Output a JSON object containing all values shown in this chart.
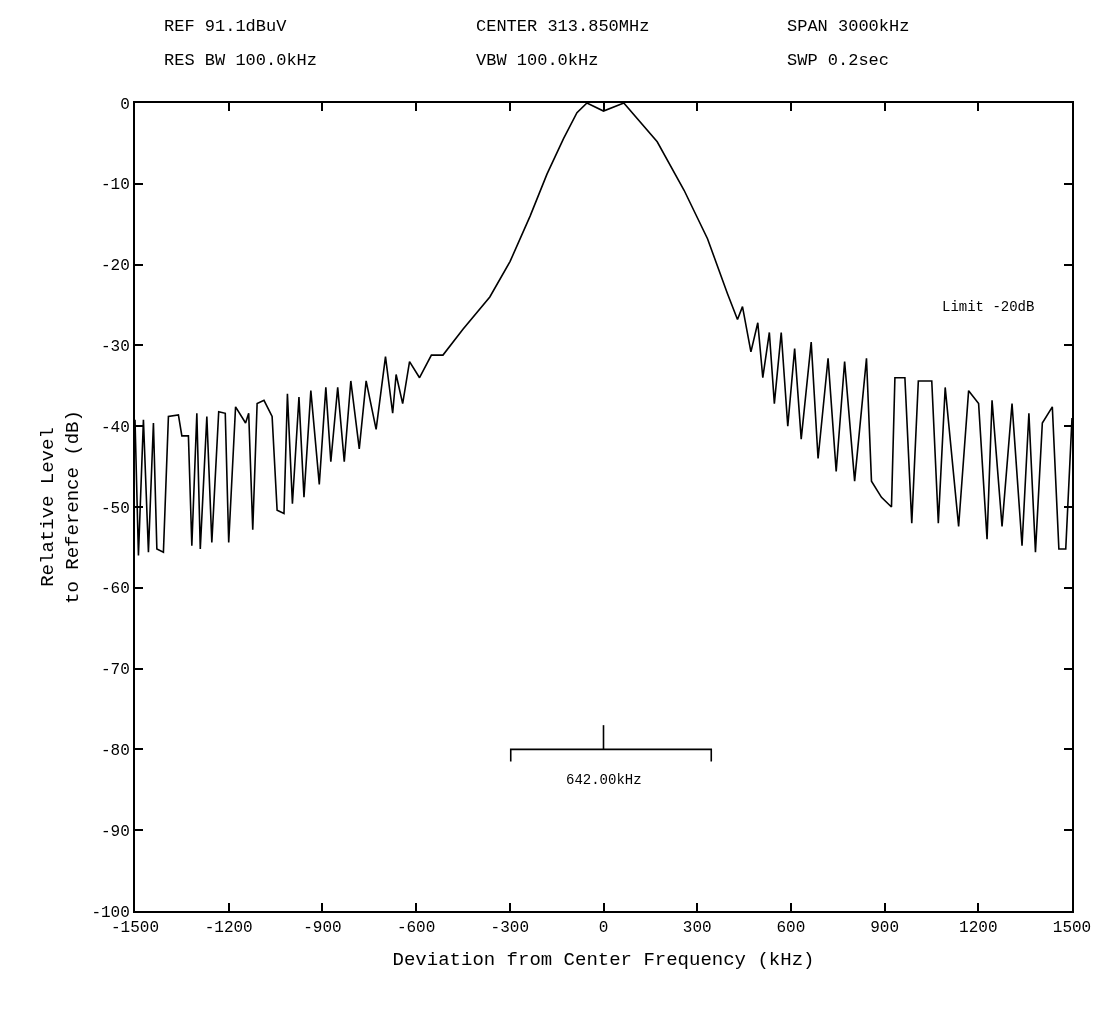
{
  "chart_data": {
    "type": "line",
    "xlabel": "Deviation from Center Frequency (kHz)",
    "ylabel": "Relative Level\nto Reference (dB)",
    "annotations": [
      "REF 91.1dBuV",
      "CENTER 313.850MHz",
      "SPAN 3000kHz",
      "RES BW 100.0kHz",
      "VBW 100.0kHz",
      "SWP 0.2sec",
      "Limit -20dB",
      "642.00kHz"
    ],
    "x": [
      -1500,
      -1489,
      -1473,
      -1457,
      -1441,
      -1430,
      -1409,
      -1393,
      -1361,
      -1350,
      -1329,
      -1318,
      -1302,
      -1291,
      -1270,
      -1254,
      -1232,
      -1211,
      -1200,
      -1178,
      -1146,
      -1136,
      -1123,
      -1109,
      -1087,
      -1061,
      -1045,
      -1023,
      -1012,
      -996,
      -975,
      -959,
      -937,
      -910,
      -889,
      -873,
      -851,
      -830,
      -809,
      -782,
      -760,
      -728,
      -698,
      -675,
      -664,
      -643,
      -621,
      -589,
      -551,
      -514,
      -450,
      -364,
      -299,
      -235,
      -181,
      -128,
      -85,
      -53,
      0,
      65,
      172,
      258,
      333,
      397,
      429,
      445,
      472,
      494,
      510,
      531,
      547,
      569,
      590,
      612,
      633,
      665,
      687,
      719,
      745,
      772,
      804,
      842,
      858,
      890,
      922,
      933,
      965,
      987,
      1008,
      1051,
      1072,
      1094,
      1137,
      1169,
      1201,
      1228,
      1244,
      1276,
      1308,
      1340,
      1362,
      1383,
      1405,
      1437,
      1458,
      1480,
      1500
    ],
    "series": [
      {
        "color": "#000000",
        "values": [
          -39.2,
          -56,
          -39.2,
          -55.6,
          -39.6,
          -55.2,
          -55.6,
          -38.8,
          -38.6,
          -41.2,
          -41.2,
          -54.8,
          -38.4,
          -55.2,
          -38.8,
          -54.4,
          -38.2,
          -38.4,
          -54.4,
          -37.6,
          -39.6,
          -38.4,
          -52.8,
          -37.2,
          -36.8,
          -38.8,
          -50.4,
          -50.8,
          -36,
          -49.6,
          -36.4,
          -48.8,
          -35.6,
          -47.2,
          -35.2,
          -44.4,
          -35.2,
          -44.4,
          -34.4,
          -42.8,
          -34.4,
          -40.4,
          -31.4,
          -38.4,
          -33.6,
          -37.2,
          -32,
          -34,
          -31.2,
          -31.2,
          -28,
          -24,
          -19.6,
          -14,
          -8.8,
          -4.4,
          -1.2,
          0,
          -1,
          0,
          -4.8,
          -10.8,
          -16.8,
          -23.6,
          -26.8,
          -25.2,
          -30.8,
          -27.2,
          -34,
          -28.4,
          -37.2,
          -28.4,
          -40,
          -30.4,
          -41.6,
          -29.6,
          -44,
          -31.6,
          -45.6,
          -32,
          -46.8,
          -31.6,
          -46.8,
          -48.8,
          -50,
          -34,
          -34,
          -52,
          -34.4,
          -34.4,
          -52,
          -35.2,
          -52.4,
          -35.6,
          -37.2,
          -54,
          -36.8,
          -52.4,
          -37.2,
          -54.8,
          -38.4,
          -55.6,
          -39.6,
          -37.6,
          -55.2,
          -55.2,
          -39
        ]
      },
      {
        "type": "line",
        "color": "#000000",
        "x": [
          -297,
          -297,
          345,
          345,
          null,
          0,
          0
        ],
        "values": [
          -81.5,
          -80,
          -80,
          -81.5,
          null,
          -80,
          -77
        ]
      }
    ],
    "xlim": [
      -1500,
      1500
    ],
    "xticks": [
      -1500,
      -1200,
      -900,
      -600,
      -300,
      0,
      300,
      600,
      900,
      1200,
      1500
    ],
    "ylim": [
      -100,
      0
    ],
    "yticks": [
      -100,
      -90,
      -80,
      -70,
      -60,
      -50,
      -40,
      -30,
      -20,
      -10,
      0
    ],
    "grid": false,
    "marker": "none",
    "line_style": "solid"
  }
}
